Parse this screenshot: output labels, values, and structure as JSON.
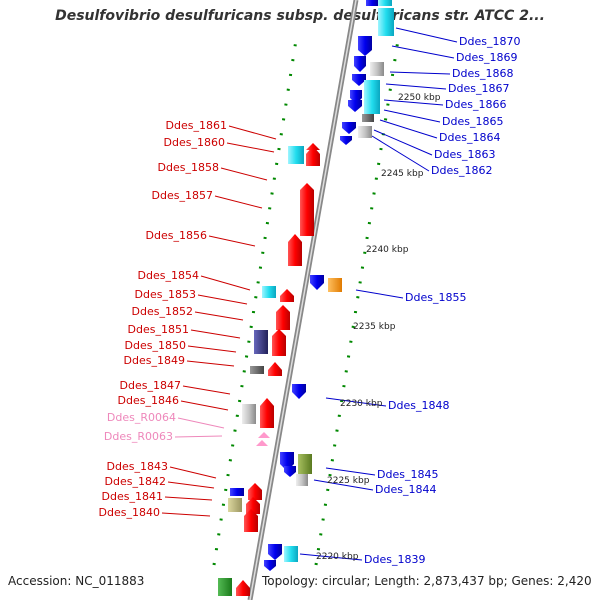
{
  "title": "Desulfovibrio desulfuricans subsp. desulfuricans str. ATCC 2...",
  "accession_text": "Accession: NC_011883",
  "topology_text": "Topology: circular; Length: 2,873,437 bp; Genes: 2,420",
  "colors": {
    "forward": "#ff0000",
    "reverse": "#0000ee",
    "rna": "#ff99cc",
    "label_red": "#cc0000",
    "label_blue": "#0000cc",
    "label_pink": "#ee88bb",
    "backbone": "#999999",
    "scale_dots": "#008800"
  },
  "kbp_marks": [
    "2250 kbp",
    "2245 kbp",
    "2240 kbp",
    "2235 kbp",
    "2230 kbp",
    "2225 kbp",
    "2220 kbp"
  ],
  "left_labels": [
    "Ddes_1861",
    "Ddes_1860",
    "Ddes_1858",
    "Ddes_1857",
    "Ddes_1856",
    "Ddes_1854",
    "Ddes_1853",
    "Ddes_1852",
    "Ddes_1851",
    "Ddes_1850",
    "Ddes_1849",
    "Ddes_1847",
    "Ddes_1846",
    "Ddes_R0064",
    "Ddes_R0063",
    "Ddes_1843",
    "Ddes_1842",
    "Ddes_1841",
    "Ddes_1840"
  ],
  "right_labels": [
    "Ddes_1870",
    "Ddes_1869",
    "Ddes_1868",
    "Ddes_1867",
    "Ddes_1866",
    "Ddes_1865",
    "Ddes_1864",
    "Ddes_1863",
    "Ddes_1862",
    "Ddes_1855",
    "Ddes_1848",
    "Ddes_1845",
    "Ddes_1844",
    "Ddes_1839"
  ]
}
